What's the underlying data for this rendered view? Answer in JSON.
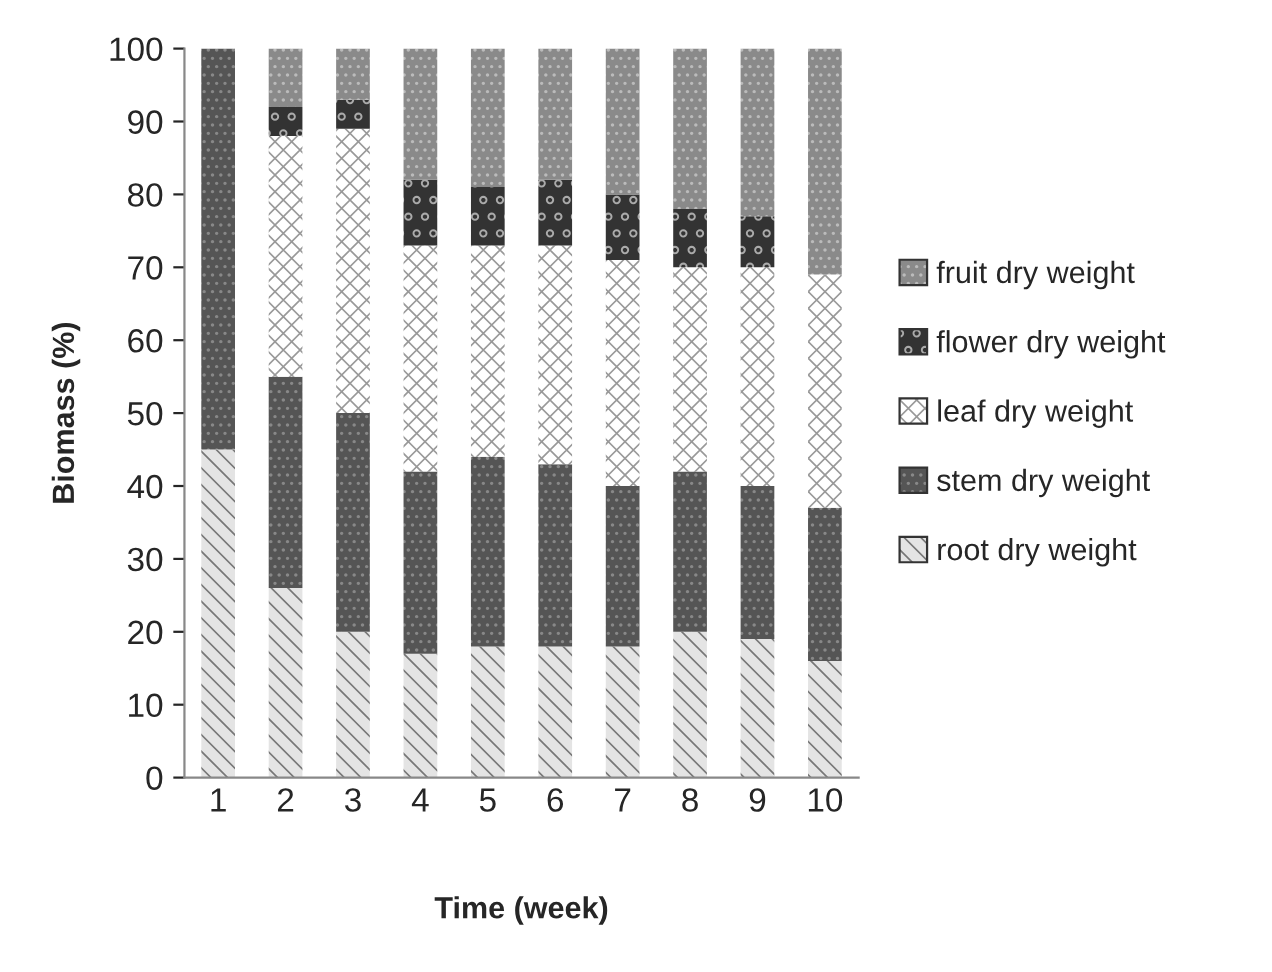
{
  "chart_data": {
    "type": "bar",
    "stacked": true,
    "xlabel": "Time (week)",
    "ylabel": "Biomass (%)",
    "categories": [
      "1",
      "2",
      "3",
      "4",
      "5",
      "6",
      "7",
      "8",
      "9",
      "10"
    ],
    "series": [
      {
        "name": "root dry weight",
        "color": "#e4e4e4",
        "values": [
          45,
          26,
          20,
          17,
          18,
          18,
          18,
          20,
          19,
          16
        ]
      },
      {
        "name": "stem dry weight",
        "color": "#555555",
        "values": [
          55,
          29,
          30,
          25,
          26,
          25,
          22,
          22,
          21,
          21
        ]
      },
      {
        "name": "leaf dry weight",
        "color": "#ffffff",
        "values": [
          0,
          33,
          39,
          31,
          29,
          30,
          31,
          28,
          30,
          32
        ]
      },
      {
        "name": "flower dry weight",
        "color": "#333333",
        "values": [
          0,
          4,
          4,
          9,
          8,
          9,
          9,
          8,
          7,
          0
        ]
      },
      {
        "name": "fruit dry weight",
        "color": "#8a8a8a",
        "values": [
          0,
          8,
          7,
          18,
          19,
          18,
          20,
          22,
          23,
          31
        ]
      }
    ],
    "ylim": [
      0,
      100
    ],
    "yticks": [
      0,
      10,
      20,
      30,
      40,
      50,
      60,
      70,
      80,
      90,
      100
    ],
    "grid": false,
    "legend": "right"
  }
}
